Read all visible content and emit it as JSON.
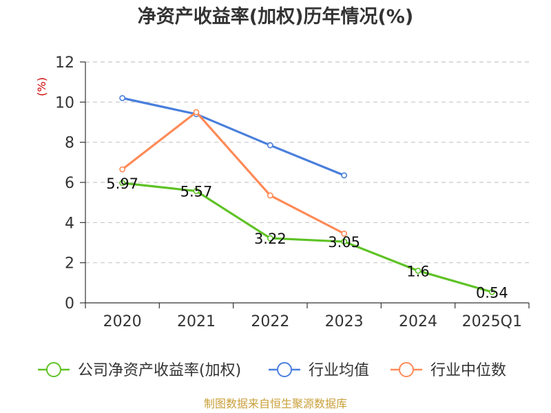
{
  "chart_data": {
    "type": "line",
    "title": "净资产收益率(加权)历年情况(%)",
    "ylabel": "(%)",
    "xlabel": "",
    "categories": [
      "2020",
      "2021",
      "2022",
      "2023",
      "2024",
      "2025Q1"
    ],
    "ylim": [
      0,
      12
    ],
    "yticks": [
      0,
      2,
      4,
      6,
      8,
      10,
      12
    ],
    "grid": true,
    "legend_position": "bottom",
    "series": [
      {
        "name": "公司净资产收益率(加权)",
        "color": "#5ec225",
        "values": [
          5.97,
          5.57,
          3.22,
          3.05,
          1.6,
          0.54
        ],
        "labels": [
          "5.97",
          "5.57",
          "3.22",
          "3.05",
          "1.6",
          "0.54"
        ]
      },
      {
        "name": "行业均值",
        "color": "#4a7fdc",
        "values": [
          10.2,
          9.4,
          7.85,
          6.35,
          null,
          null
        ]
      },
      {
        "name": "行业中位数",
        "color": "#ff8a57",
        "values": [
          6.65,
          9.5,
          5.35,
          3.45,
          null,
          null
        ]
      }
    ]
  },
  "source_note": "制图数据来自恒生聚源数据库"
}
